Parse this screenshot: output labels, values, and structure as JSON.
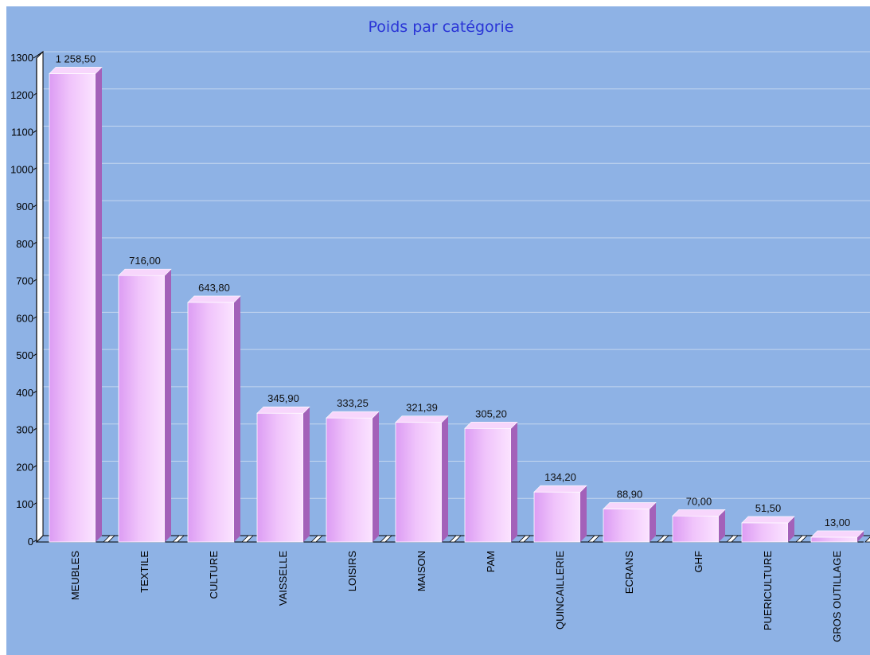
{
  "chart_data": {
    "type": "bar",
    "title": "Poids par catégorie",
    "xlabel": "",
    "ylabel": "",
    "categories": [
      "MEUBLES",
      "TEXTILE",
      "CULTURE",
      "VAISSELLE",
      "LOISIRS",
      "MAISON",
      "PAM",
      "QUINCAILLERIE",
      "ECRANS",
      "GHF",
      "PUERICULTURE",
      "GROS OUTILLAGE"
    ],
    "values": [
      1258.5,
      716.0,
      643.8,
      345.9,
      333.25,
      321.39,
      305.2,
      134.2,
      88.9,
      70.0,
      51.5,
      13.0
    ],
    "value_labels": [
      "1 258,50",
      "716,00",
      "643,80",
      "345,90",
      "333,25",
      "321,39",
      "305,20",
      "134,20",
      "88,90",
      "70,00",
      "51,50",
      "13,00"
    ],
    "y_ticks": [
      "0",
      "100",
      "200",
      "300",
      "400",
      "500",
      "600",
      "700",
      "800",
      "900",
      "1000",
      "1100",
      "1200",
      "1300"
    ],
    "ylim": [
      0,
      1300
    ],
    "grid": true,
    "legend": "none",
    "colors": {
      "background": "#8eb2e5",
      "gridline": "#c4d6ef",
      "bar_light": "#fbe3ff",
      "bar_mid": "#f0c4fb",
      "bar_dark": "#dc9cf3",
      "bar_side": "#a361b9",
      "bar_top": "#f7d6fc",
      "title": "#2a35d6"
    }
  }
}
